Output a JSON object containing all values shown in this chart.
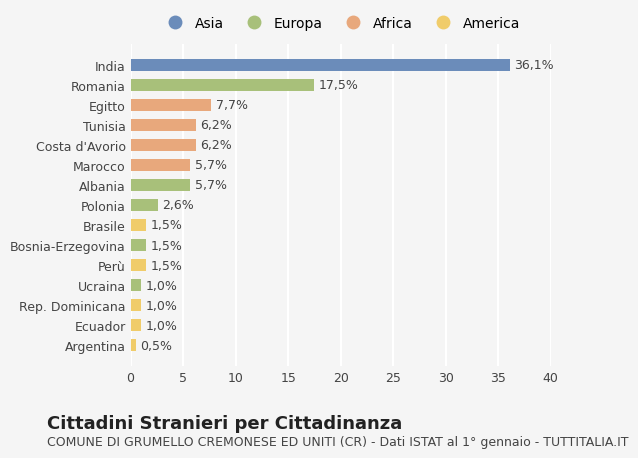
{
  "categories": [
    "India",
    "Romania",
    "Egitto",
    "Tunisia",
    "Costa d'Avorio",
    "Marocco",
    "Albania",
    "Polonia",
    "Brasile",
    "Bosnia-Erzegovina",
    "Perù",
    "Ucraina",
    "Rep. Dominicana",
    "Ecuador",
    "Argentina"
  ],
  "values": [
    36.1,
    17.5,
    7.7,
    6.2,
    6.2,
    5.7,
    5.7,
    2.6,
    1.5,
    1.5,
    1.5,
    1.0,
    1.0,
    1.0,
    0.5
  ],
  "labels": [
    "36,1%",
    "17,5%",
    "7,7%",
    "6,2%",
    "6,2%",
    "5,7%",
    "5,7%",
    "2,6%",
    "1,5%",
    "1,5%",
    "1,5%",
    "1,0%",
    "1,0%",
    "1,0%",
    "0,5%"
  ],
  "continents": [
    "Asia",
    "Europa",
    "Africa",
    "Africa",
    "Africa",
    "Africa",
    "Europa",
    "Europa",
    "America",
    "Europa",
    "America",
    "Europa",
    "America",
    "America",
    "America"
  ],
  "continent_colors": {
    "Asia": "#6b8cba",
    "Europa": "#a8c07a",
    "Africa": "#e8a87c",
    "America": "#f0cc6a"
  },
  "legend_order": [
    "Asia",
    "Europa",
    "Africa",
    "America"
  ],
  "title": "Cittadini Stranieri per Cittadinanza",
  "subtitle": "COMUNE DI GRUMELLO CREMONESE ED UNITI (CR) - Dati ISTAT al 1° gennaio - TUTTITALIA.IT",
  "xlim": [
    0,
    40
  ],
  "xticks": [
    0,
    5,
    10,
    15,
    20,
    25,
    30,
    35,
    40
  ],
  "background_color": "#f5f5f5",
  "bar_height": 0.6,
  "grid_color": "#ffffff",
  "title_fontsize": 13,
  "subtitle_fontsize": 9,
  "label_fontsize": 9,
  "tick_fontsize": 9,
  "legend_fontsize": 10
}
